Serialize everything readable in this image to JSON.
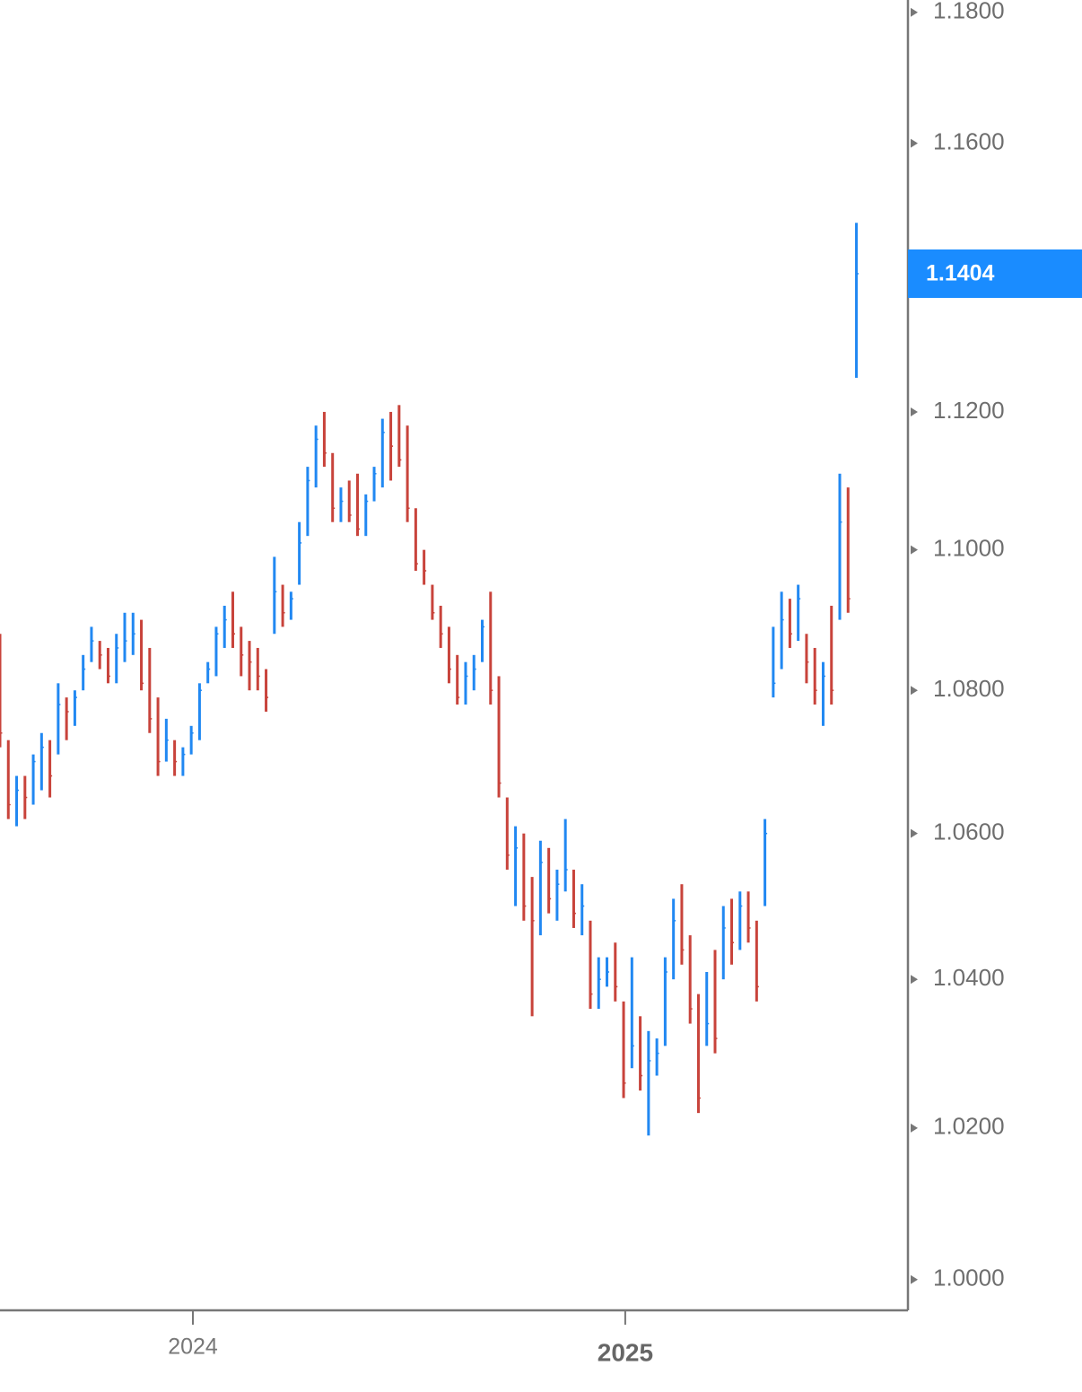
{
  "chart_data": {
    "type": "ohlc",
    "log": true,
    "up_color": "#2188f2",
    "down_color": "#c8433b",
    "price_label_color": "#1a8cff",
    "categories": [
      null,
      null,
      null,
      null,
      null,
      null,
      null,
      null,
      null,
      null,
      null,
      null,
      null,
      null,
      null,
      null,
      null,
      null,
      null,
      null,
      null,
      null,
      null,
      null,
      null,
      null,
      null,
      null,
      null,
      null,
      null,
      null,
      null,
      null,
      null,
      null,
      null,
      null,
      null,
      null,
      null,
      null,
      null,
      null,
      null,
      null,
      null,
      null,
      null,
      null,
      null,
      null,
      null,
      null,
      null,
      null,
      null,
      null,
      null,
      null,
      null,
      null,
      null,
      null,
      null,
      null,
      null,
      null,
      null,
      null,
      null,
      null,
      null,
      null,
      null,
      null,
      null,
      null,
      null,
      null,
      null,
      null,
      null,
      null,
      null,
      null,
      null,
      null,
      null,
      null,
      null,
      null,
      null,
      null,
      null,
      null,
      null,
      null,
      null,
      null,
      null,
      null,
      null,
      null
    ],
    "high": [
      1.088,
      1.073,
      1.068,
      1.068,
      1.071,
      1.074,
      1.073,
      1.081,
      1.079,
      1.08,
      1.085,
      1.089,
      1.087,
      1.086,
      1.088,
      1.091,
      1.091,
      1.09,
      1.086,
      1.079,
      1.076,
      1.073,
      1.072,
      1.075,
      1.081,
      1.084,
      1.089,
      1.092,
      1.094,
      1.089,
      1.087,
      1.086,
      1.083,
      1.099,
      1.095,
      1.094,
      1.104,
      1.112,
      1.118,
      1.12,
      1.114,
      1.109,
      1.11,
      1.111,
      1.108,
      1.112,
      1.119,
      1.12,
      1.121,
      1.118,
      1.106,
      1.1,
      1.095,
      1.092,
      1.089,
      1.085,
      1.084,
      1.085,
      1.09,
      1.094,
      1.082,
      1.065,
      1.061,
      1.06,
      1.054,
      1.059,
      1.058,
      1.055,
      1.062,
      1.055,
      1.053,
      1.048,
      1.043,
      1.043,
      1.045,
      1.037,
      1.043,
      1.035,
      1.033,
      1.032,
      1.043,
      1.051,
      1.053,
      1.046,
      1.038,
      1.041,
      1.044,
      1.05,
      1.051,
      1.052,
      1.052,
      1.048,
      1.062,
      1.089,
      1.094,
      1.093,
      1.095,
      1.088,
      1.086,
      1.084,
      1.092,
      1.111,
      1.109,
      1.148
    ],
    "low": [
      1.072,
      1.062,
      1.061,
      1.062,
      1.064,
      1.066,
      1.065,
      1.071,
      1.073,
      1.075,
      1.08,
      1.084,
      1.083,
      1.081,
      1.081,
      1.084,
      1.085,
      1.08,
      1.074,
      1.068,
      1.07,
      1.068,
      1.068,
      1.071,
      1.073,
      1.081,
      1.082,
      1.086,
      1.086,
      1.082,
      1.08,
      1.08,
      1.077,
      1.088,
      1.089,
      1.09,
      1.095,
      1.102,
      1.109,
      1.112,
      1.104,
      1.104,
      1.104,
      1.102,
      1.102,
      1.107,
      1.109,
      1.11,
      1.112,
      1.104,
      1.097,
      1.095,
      1.09,
      1.086,
      1.081,
      1.078,
      1.078,
      1.08,
      1.084,
      1.078,
      1.065,
      1.055,
      1.05,
      1.048,
      1.035,
      1.046,
      1.049,
      1.048,
      1.052,
      1.047,
      1.046,
      1.036,
      1.036,
      1.039,
      1.037,
      1.024,
      1.028,
      1.025,
      1.019,
      1.027,
      1.031,
      1.04,
      1.042,
      1.034,
      1.022,
      1.031,
      1.03,
      1.04,
      1.042,
      1.044,
      1.045,
      1.037,
      1.05,
      1.079,
      1.083,
      1.086,
      1.087,
      1.081,
      1.078,
      1.075,
      1.078,
      1.09,
      1.091,
      1.125
    ],
    "close": [
      1.074,
      1.064,
      1.066,
      1.065,
      1.07,
      1.072,
      1.068,
      1.078,
      1.077,
      1.079,
      1.083,
      1.087,
      1.085,
      1.082,
      1.086,
      1.087,
      1.088,
      1.081,
      1.076,
      1.07,
      1.073,
      1.07,
      1.071,
      1.074,
      1.08,
      1.083,
      1.088,
      1.09,
      1.088,
      1.085,
      1.084,
      1.082,
      1.079,
      1.094,
      1.091,
      1.093,
      1.101,
      1.11,
      1.116,
      1.114,
      1.106,
      1.107,
      1.105,
      1.103,
      1.107,
      1.111,
      1.117,
      1.115,
      1.113,
      1.106,
      1.098,
      1.097,
      1.091,
      1.088,
      1.083,
      1.079,
      1.082,
      1.083,
      1.089,
      1.08,
      1.067,
      1.057,
      1.058,
      1.05,
      1.048,
      1.056,
      1.051,
      1.053,
      1.055,
      1.049,
      1.05,
      1.038,
      1.04,
      1.041,
      1.039,
      1.026,
      1.031,
      1.027,
      1.029,
      1.03,
      1.041,
      1.048,
      1.044,
      1.036,
      1.024,
      1.034,
      1.032,
      1.047,
      1.045,
      1.05,
      1.047,
      1.039,
      1.06,
      1.081,
      1.09,
      1.088,
      1.093,
      1.084,
      1.08,
      1.082,
      1.08,
      1.104,
      1.093,
      1.1404
    ],
    "xlim": [
      0,
      109.2
    ],
    "xticks": [
      {
        "value": 23.2,
        "label": "2024"
      },
      {
        "value": 75.2,
        "label": "2025"
      }
    ],
    "ylim": [
      0.996,
      1.1819
    ],
    "yticks": [
      {
        "value": 1.18,
        "label": "1.1800"
      },
      {
        "value": 1.16,
        "label": "1.1600"
      },
      {
        "value": 1.12,
        "label": "1.1200"
      },
      {
        "value": 1.1,
        "label": "1.1000"
      },
      {
        "value": 1.08,
        "label": "1.0800"
      },
      {
        "value": 1.06,
        "label": "1.0600"
      },
      {
        "value": 1.04,
        "label": "1.0400"
      },
      {
        "value": 1.02,
        "label": "1.0200"
      },
      {
        "value": 1.0,
        "label": "1.0000"
      }
    ]
  }
}
